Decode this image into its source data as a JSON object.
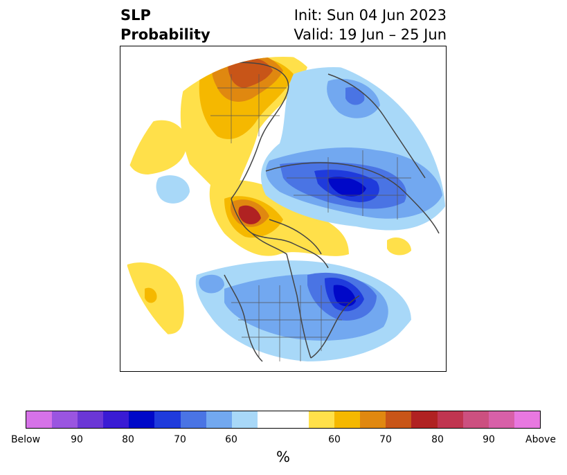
{
  "header": {
    "title_line1": "SLP",
    "title_line2": "Probability",
    "init": "Init: Sun 04 Jun 2023",
    "valid": "Valid: 19 Jun – 25 Jun"
  },
  "colorbar": {
    "colors": [
      "#d672e8",
      "#9a55e0",
      "#6b37d6",
      "#3a1bd4",
      "#0008c8",
      "#1f3bdc",
      "#4a74e4",
      "#72a8f0",
      "#a8d8f8",
      "#ffffff",
      "#ffffff",
      "#ffe04a",
      "#f5b800",
      "#e08810",
      "#c85518",
      "#b02222",
      "#c03550",
      "#cc5080",
      "#d860a8",
      "#e878e0"
    ],
    "tick_labels": [
      "Below",
      "90",
      "80",
      "70",
      "60",
      "60",
      "70",
      "80",
      "90",
      "Above"
    ],
    "unit_label": "%"
  }
}
